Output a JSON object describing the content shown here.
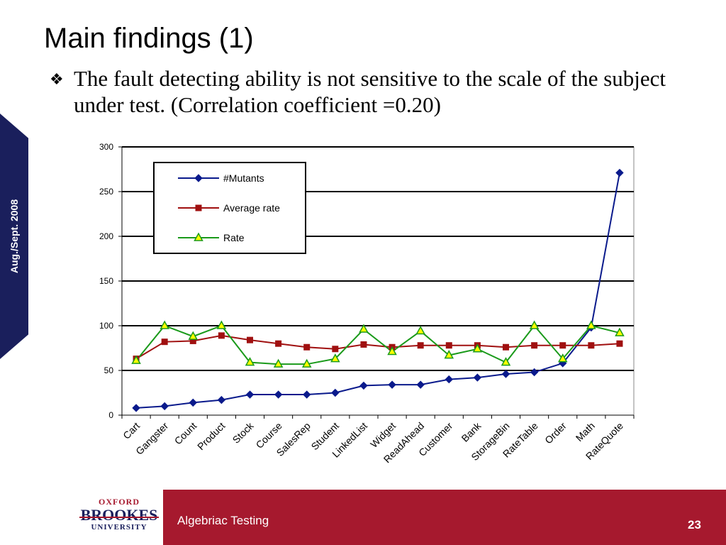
{
  "side_tab": {
    "text": "Aug./Sept. 2008"
  },
  "title": "Main findings (1)",
  "bullet": {
    "icon": "diamond-bullet-icon",
    "text": "The fault detecting ability is not sensitive to the scale of the subject under test. (Correlation coefficient =0.20)"
  },
  "footer": {
    "logo": {
      "line1": "OXFORD",
      "line2": "BROOKES",
      "line3": "UNIVERSITY"
    },
    "title": "Algebriac Testing",
    "page_number": "23",
    "band_color": "#a6192e"
  },
  "chart_data": {
    "type": "line",
    "categories": [
      "Cart",
      "Gangster",
      "Count",
      "Product",
      "Stock",
      "Course",
      "SalesRep",
      "Student",
      "LinkedList",
      "Widget",
      "ReadAhead",
      "Customer",
      "Bank",
      "StorageBin",
      "RateTable",
      "Order",
      "Math",
      "RateQuote"
    ],
    "series": [
      {
        "name": "#Mutants",
        "color": "#0a1a8c",
        "marker": "diamond",
        "values": [
          8,
          10,
          14,
          17,
          23,
          23,
          23,
          25,
          33,
          34,
          34,
          40,
          42,
          46,
          48,
          58,
          98,
          271
        ]
      },
      {
        "name": "Average rate",
        "color": "#a01010",
        "marker": "square",
        "values": [
          63,
          82,
          83,
          89,
          84,
          80,
          76,
          74,
          79,
          76,
          78,
          78,
          78,
          76,
          78,
          78,
          78,
          80
        ]
      },
      {
        "name": "Rate",
        "color": "#1a9a1a",
        "marker": "triangle",
        "values": [
          61,
          100,
          88,
          100,
          59,
          57,
          57,
          63,
          96,
          71,
          94,
          67,
          74,
          59,
          100,
          63,
          100,
          92
        ]
      }
    ],
    "ylim": [
      0,
      300
    ],
    "yticks": [
      0,
      50,
      100,
      150,
      200,
      250,
      300
    ],
    "grid": true,
    "legend_position": "top-left"
  }
}
